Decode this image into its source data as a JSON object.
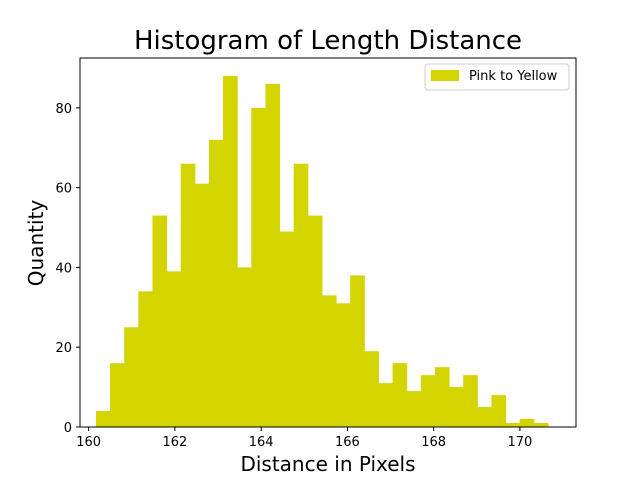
{
  "chart_data": {
    "type": "bar",
    "title": "Histogram of Length Distance",
    "xlabel": "Distance in Pixels",
    "ylabel": "Quantity",
    "xlim": [
      159.8,
      171.3
    ],
    "ylim": [
      0,
      92.5
    ],
    "xticks": [
      "160",
      "162",
      "164",
      "166",
      "168",
      "170"
    ],
    "yticks": [
      "0",
      "20",
      "40",
      "60",
      "80"
    ],
    "grid": false,
    "legend_position": "top-right",
    "bin_start": 160.17,
    "bin_width": 0.3275,
    "series": [
      {
        "name": "Pink to Yellow",
        "color": "#d4d400",
        "values": [
          4,
          16,
          25,
          34,
          53,
          39,
          66,
          61,
          72,
          88,
          40,
          80,
          86,
          49,
          66,
          53,
          33,
          31,
          38,
          19,
          11,
          16,
          9,
          13,
          15,
          10,
          13,
          5,
          8,
          1,
          2,
          1
        ]
      }
    ]
  }
}
